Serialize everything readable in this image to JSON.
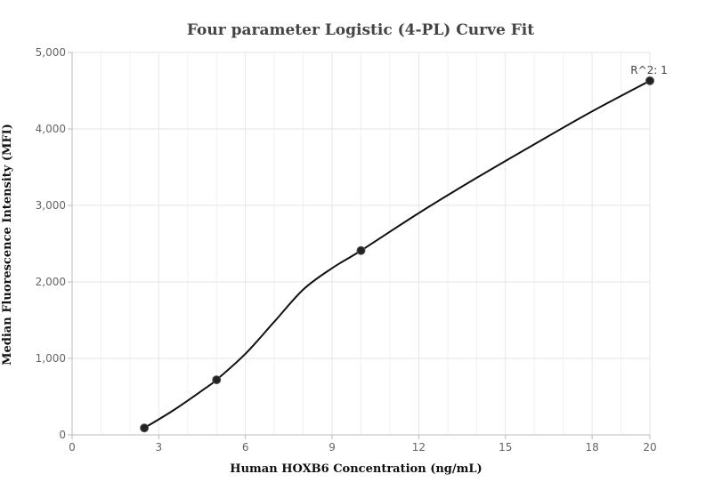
{
  "chart_data": {
    "type": "scatter",
    "title": "Four parameter Logistic (4-PL) Curve Fit",
    "xlabel": "Human HOXB6 Concentration  (ng/mL)",
    "ylabel": "Median Fluorescence Intensity (MFI)",
    "xlim": [
      0,
      20
    ],
    "ylim": [
      0,
      5000
    ],
    "x_ticks": [
      0,
      3,
      6,
      9,
      12,
      15,
      18,
      20
    ],
    "x_tick_labels": [
      "0",
      "3",
      "6",
      "9",
      "12",
      "15",
      "18",
      "20"
    ],
    "y_ticks": [
      0,
      1000,
      2000,
      3000,
      4000,
      5000
    ],
    "y_tick_labels": [
      "0",
      "1,000",
      "2,000",
      "3,000",
      "4,000",
      "5,000"
    ],
    "grid": true,
    "legend": false,
    "series": [
      {
        "points": [
          {
            "x": 2.5,
            "y": 90
          },
          {
            "x": 5,
            "y": 720
          },
          {
            "x": 10,
            "y": 2410
          },
          {
            "x": 20,
            "y": 4630
          }
        ]
      }
    ],
    "fit_curve": {
      "x": [
        2.5,
        3.5,
        4.5,
        5,
        6,
        7,
        8,
        9,
        10,
        12,
        14,
        16,
        18,
        20
      ],
      "y": [
        90,
        320,
        580,
        720,
        1060,
        1480,
        1900,
        2180,
        2410,
        2900,
        3360,
        3800,
        4230,
        4630
      ]
    },
    "annotation": "R^2: 1",
    "colors": {
      "curve": "#111111",
      "points": "#222222",
      "grid": "#e6e6e6"
    }
  }
}
